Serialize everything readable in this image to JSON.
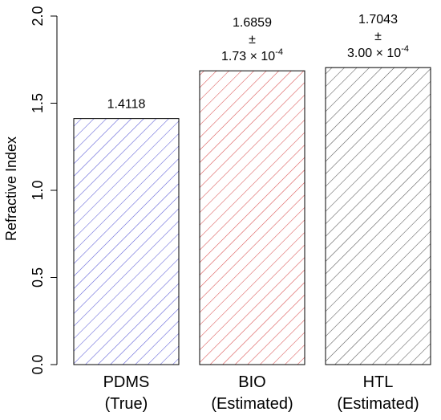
{
  "chart_data": {
    "type": "bar",
    "title": "",
    "xlabel": "",
    "ylabel": "Refractive Index",
    "ylim": [
      0,
      2.0
    ],
    "yticks": [
      "0.0",
      "0.5",
      "1.0",
      "1.5",
      "2.0"
    ],
    "grid": false,
    "legend": "none",
    "categories": [
      {
        "line1": "PDMS",
        "line2": "(True)"
      },
      {
        "line1": "BIO",
        "line2": "(Estimated)"
      },
      {
        "line1": "HTL",
        "line2": "(Estimated)"
      }
    ],
    "values": [
      1.4118,
      1.6859,
      1.7043
    ],
    "bar_colors": [
      "#5b5bd6",
      "#d95050",
      "#555555"
    ],
    "data_labels": [
      {
        "value": "1.4118"
      },
      {
        "value": "1.6859",
        "pm": "±",
        "err_mantissa": "1.73 × 10",
        "err_exp": "-4"
      },
      {
        "value": "1.7043",
        "pm": "±",
        "err_mantissa": "3.00 × 10",
        "err_exp": "-4"
      }
    ]
  }
}
